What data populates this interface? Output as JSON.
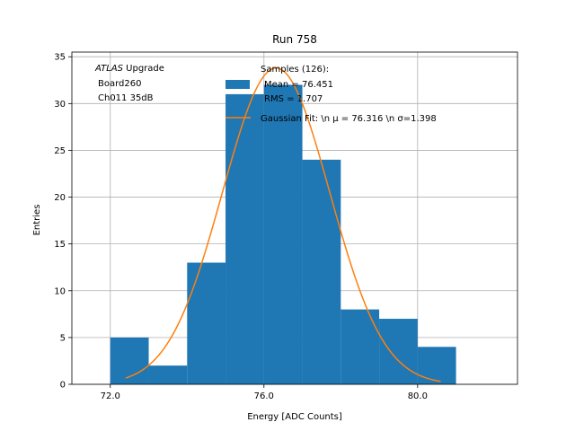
{
  "chart_data": {
    "type": "bar",
    "title": "Run 758",
    "xlabel": "Energy [ADC Counts]",
    "ylabel": "Entries",
    "xlim": [
      71.0,
      82.6
    ],
    "ylim": [
      0,
      35.5
    ],
    "xticks": [
      72.0,
      76.0,
      80.0
    ],
    "xtick_labels": [
      "72.0",
      "76.0",
      "80.0"
    ],
    "yticks": [
      0,
      5,
      10,
      15,
      20,
      25,
      30,
      35
    ],
    "ytick_labels": [
      "0",
      "5",
      "10",
      "15",
      "20",
      "25",
      "30",
      "35"
    ],
    "grid": true,
    "histogram": {
      "bin_edges": [
        72.0,
        73.0,
        74.0,
        75.0,
        76.0,
        77.0,
        78.0,
        79.0,
        80.0,
        81.0
      ],
      "counts": [
        5,
        2,
        13,
        31,
        32,
        24,
        8,
        7,
        4
      ],
      "color": "#1f77b4"
    },
    "fit": {
      "type": "gaussian",
      "mu": 76.316,
      "sigma": 1.398,
      "amplitude": 33.8,
      "x_range": [
        72.4,
        80.6
      ],
      "color": "#ff7f0e"
    },
    "annotation": {
      "italic": "ATLAS",
      "rest": " Upgrade",
      "line2": "Board260",
      "line3": "Ch011 35dB"
    },
    "legend": {
      "position": "top-right",
      "hist_line1": "Samples (126):",
      "hist_line2": "Mean = 76.451",
      "hist_line3": "RMS = 1.707",
      "fit_label": "Gaussian Fit: \\n μ = 76.316 \\n σ=1.398"
    }
  }
}
